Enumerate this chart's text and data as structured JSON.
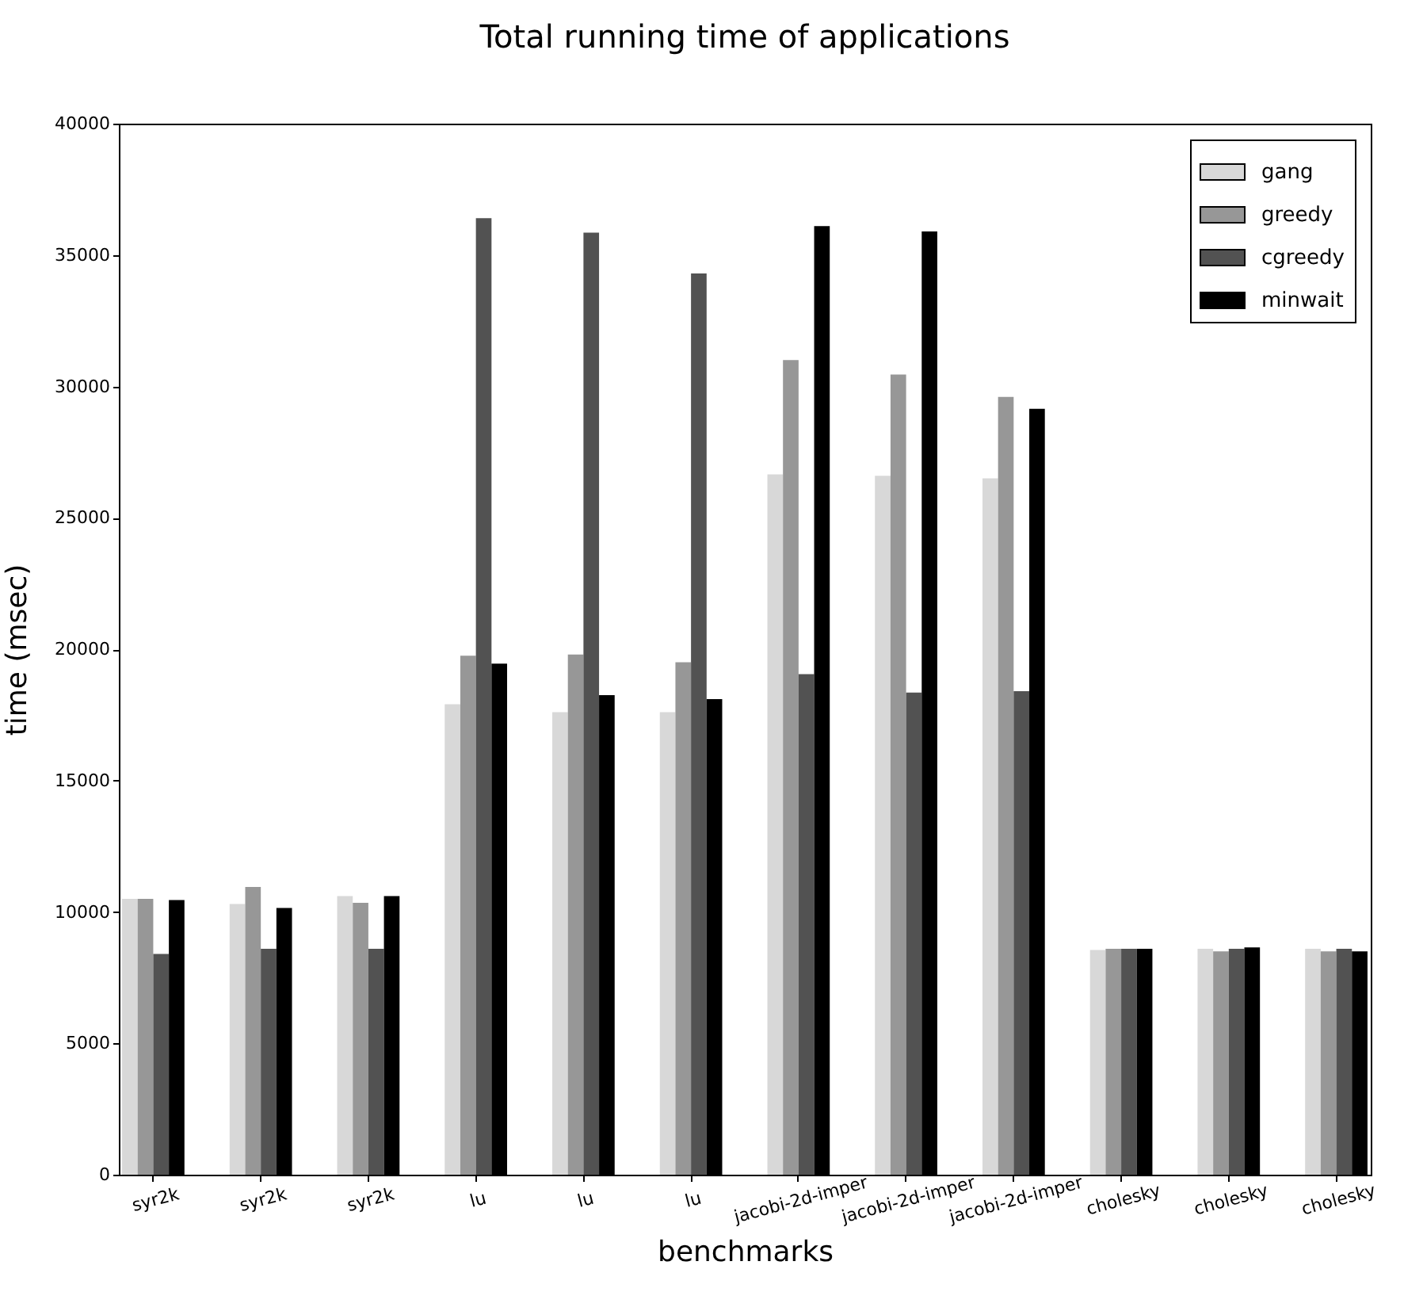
{
  "chart_data": {
    "type": "bar",
    "title": "Total running time of applications",
    "xlabel": "benchmarks",
    "ylabel": "time (msec)",
    "categories": [
      "syr2k",
      "syr2k",
      "syr2k",
      "lu",
      "lu",
      "lu",
      "jacobi-2d-imper",
      "jacobi-2d-imper",
      "jacobi-2d-imper",
      "cholesky",
      "cholesky",
      "cholesky"
    ],
    "series": [
      {
        "name": "gang",
        "color": "#d8d8d8",
        "values": [
          10500,
          10300,
          10600,
          17900,
          17600,
          17600,
          26650,
          26600,
          26500,
          8550,
          8600,
          8600
        ]
      },
      {
        "name": "greedy",
        "color": "#979797",
        "values": [
          10500,
          10950,
          10350,
          19750,
          19800,
          19500,
          31000,
          30450,
          29600,
          8600,
          8500,
          8500
        ]
      },
      {
        "name": "cgreedy",
        "color": "#525252",
        "values": [
          8400,
          8600,
          8600,
          36400,
          35850,
          34300,
          19050,
          18350,
          18400,
          8600,
          8600,
          8600
        ]
      },
      {
        "name": "minwait",
        "color": "#000000",
        "values": [
          10450,
          10150,
          10600,
          19450,
          18250,
          18100,
          36100,
          35900,
          29150,
          8600,
          8650,
          8500
        ]
      }
    ],
    "ylim": [
      0,
      40000
    ],
    "yticks": [
      0,
      5000,
      10000,
      15000,
      20000,
      25000,
      30000,
      35000,
      40000
    ],
    "legend": "top right"
  }
}
